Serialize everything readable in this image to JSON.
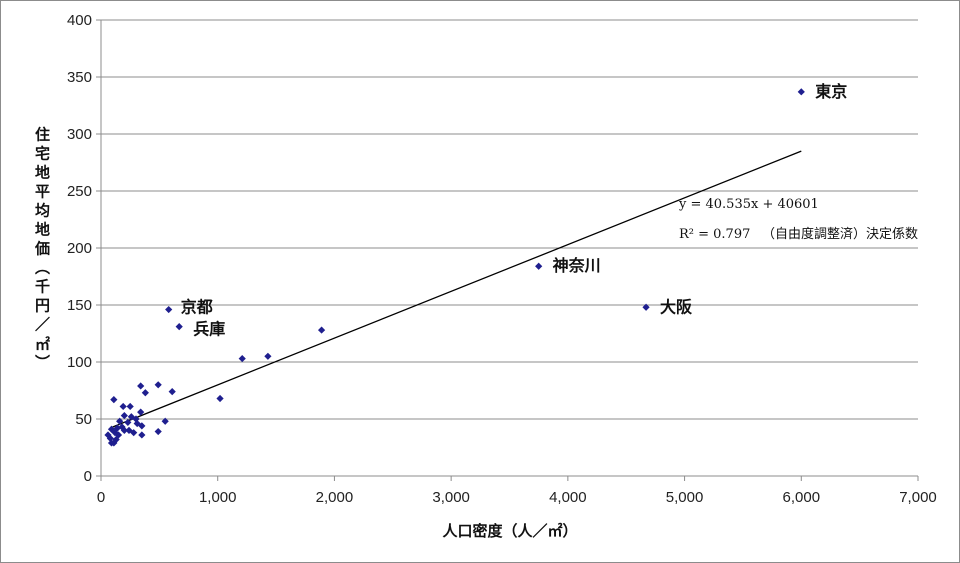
{
  "chart_data": {
    "type": "scatter",
    "xlabel": "人口密度（人／㎡）",
    "ylabel": "住宅地平均地価（千円／㎡）",
    "xlim": [
      0,
      7000
    ],
    "ylim": [
      0,
      400
    ],
    "x_ticks": [
      "0",
      "1,000",
      "2,000",
      "3,000",
      "4,000",
      "5,000",
      "6,000",
      "7,000"
    ],
    "y_ticks": [
      "0",
      "50",
      "100",
      "150",
      "200",
      "250",
      "300",
      "350",
      "400"
    ],
    "grid": "horizontal",
    "marker_color": "#1f1f8f",
    "points": [
      {
        "x": 6000,
        "y": 337,
        "label": "東京"
      },
      {
        "x": 3750,
        "y": 184,
        "label": "神奈川"
      },
      {
        "x": 4670,
        "y": 148,
        "label": "大阪"
      },
      {
        "x": 580,
        "y": 146,
        "label": "京都"
      },
      {
        "x": 670,
        "y": 131,
        "label": "兵庫"
      },
      {
        "x": 1890,
        "y": 128
      },
      {
        "x": 1430,
        "y": 105
      },
      {
        "x": 1210,
        "y": 103
      },
      {
        "x": 1020,
        "y": 68
      },
      {
        "x": 490,
        "y": 80
      },
      {
        "x": 340,
        "y": 79
      },
      {
        "x": 380,
        "y": 73
      },
      {
        "x": 610,
        "y": 74
      },
      {
        "x": 110,
        "y": 67
      },
      {
        "x": 190,
        "y": 61
      },
      {
        "x": 250,
        "y": 61
      },
      {
        "x": 340,
        "y": 56
      },
      {
        "x": 200,
        "y": 53
      },
      {
        "x": 260,
        "y": 52
      },
      {
        "x": 300,
        "y": 50
      },
      {
        "x": 160,
        "y": 48
      },
      {
        "x": 230,
        "y": 47
      },
      {
        "x": 550,
        "y": 48
      },
      {
        "x": 310,
        "y": 46
      },
      {
        "x": 350,
        "y": 44
      },
      {
        "x": 180,
        "y": 43
      },
      {
        "x": 140,
        "y": 42
      },
      {
        "x": 90,
        "y": 41
      },
      {
        "x": 200,
        "y": 40
      },
      {
        "x": 240,
        "y": 40
      },
      {
        "x": 490,
        "y": 39
      },
      {
        "x": 120,
        "y": 38
      },
      {
        "x": 280,
        "y": 38
      },
      {
        "x": 60,
        "y": 36
      },
      {
        "x": 150,
        "y": 36
      },
      {
        "x": 350,
        "y": 36
      },
      {
        "x": 80,
        "y": 33
      },
      {
        "x": 130,
        "y": 32
      },
      {
        "x": 90,
        "y": 29
      },
      {
        "x": 110,
        "y": 29
      }
    ],
    "trendline": {
      "x": [
        100,
        6000
      ],
      "y": [
        43,
        285
      ],
      "equation": "y = 40.535x + 40601",
      "r2_label": "R² = 0.797",
      "r2_note": "（自由度調整済）決定係数"
    }
  }
}
